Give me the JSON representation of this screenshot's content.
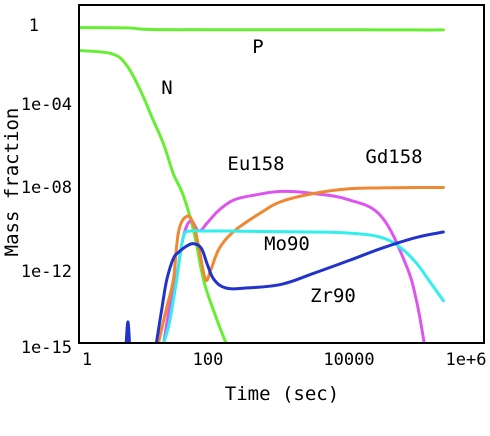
{
  "chart_data": {
    "type": "line",
    "title": "",
    "xlabel": "Time (sec)",
    "ylabel": "Mass fraction",
    "x_scale": "log",
    "y_scale": "log",
    "xlim": [
      1,
      1000000
    ],
    "ylim": [
      1e-15,
      10
    ],
    "x_tick_labels": [
      "1",
      "100",
      "10000",
      "1e+6"
    ],
    "y_tick_labels": [
      "1",
      "1e-04",
      "1e-08",
      "1e-12",
      "1e-15"
    ],
    "grid": false,
    "series": [
      {
        "name": "P",
        "color": "#66ee33",
        "x": [
          1,
          5,
          10,
          30,
          100,
          1000,
          10000,
          100000,
          250000
        ],
        "y": [
          0.85,
          0.82,
          0.7,
          0.68,
          0.68,
          0.67,
          0.67,
          0.66,
          0.66
        ]
      },
      {
        "name": "N",
        "color": "#66ee33",
        "x": [
          1,
          3,
          5,
          8,
          12,
          18,
          25,
          35,
          50,
          70,
          100,
          150
        ],
        "y": [
          0.07,
          0.05,
          0.015,
          0.001,
          5e-05,
          2.5e-06,
          1e-07,
          1e-08,
          2e-10,
          1e-12,
          3e-14,
          1e-15
        ]
      },
      {
        "name": "Eu158",
        "color": "#dd55ee",
        "x": [
          18,
          22,
          28,
          35,
          45,
          60,
          80,
          120,
          200,
          400,
          1000,
          3000,
          10000,
          30000,
          70000,
          100000,
          130000
        ],
        "y": [
          1e-15,
          5e-14,
          1.5e-12,
          1e-10,
          6e-10,
          2e-10,
          5e-10,
          2e-09,
          6e-09,
          1e-08,
          1.5e-08,
          1.2e-08,
          6e-09,
          1e-09,
          5e-12,
          1e-13,
          1e-15
        ]
      },
      {
        "name": "Gd158",
        "color": "#ee8833",
        "x": [
          15,
          20,
          25,
          30,
          40,
          50,
          60,
          75,
          90,
          120,
          200,
          500,
          1000,
          3000,
          10000,
          30000,
          100000,
          250000
        ],
        "y": [
          1e-15,
          5e-14,
          1e-12,
          2e-10,
          1e-09,
          4e-10,
          3e-11,
          1e-12,
          3e-12,
          3e-11,
          2e-10,
          1.5e-09,
          5e-09,
          1.2e-08,
          2e-08,
          2.2e-08,
          2.3e-08,
          2.3e-08
        ]
      },
      {
        "name": "Mo90",
        "color": "#33eeee",
        "x": [
          18,
          22,
          28,
          35,
          45,
          60,
          80,
          150,
          500,
          3000,
          10000,
          30000,
          60000,
          100000,
          150000,
          250000
        ],
        "y": [
          1e-15,
          1e-14,
          1e-12,
          1e-10,
          2e-10,
          2e-10,
          2e-10,
          2e-10,
          1.9e-10,
          1.8e-10,
          1.6e-10,
          1e-10,
          3e-11,
          6e-12,
          1e-12,
          1e-13
        ]
      },
      {
        "name": "Zr90",
        "color": "#2233cc",
        "x": [
          14,
          17,
          20,
          25,
          30,
          40,
          50,
          65,
          80,
          100,
          150,
          300,
          1000,
          3000,
          10000,
          30000,
          100000,
          250000
        ],
        "y": [
          1e-15,
          5e-14,
          1e-12,
          1e-11,
          2e-11,
          4e-11,
          5e-11,
          3e-11,
          5e-12,
          1e-12,
          4e-13,
          4e-13,
          6e-13,
          2e-12,
          8e-12,
          3e-11,
          1e-10,
          1.8e-10
        ]
      },
      {
        "name": "",
        "color": "#2233cc",
        "x": [
          5.0,
          5.3,
          5.6
        ],
        "y": [
          1e-15,
          1e-14,
          1e-15
        ]
      }
    ],
    "annotations": [
      {
        "text": "P",
        "x": 500,
        "y": 0.01
      },
      {
        "text": "N",
        "x": 20,
        "y": 0.0001
      },
      {
        "text": "Eu158",
        "x": 300,
        "y": 2e-07
      },
      {
        "text": "Gd158",
        "x": 30000,
        "y": 2e-07
      },
      {
        "text": "Mo90",
        "x": 1000,
        "y": 5e-11
      },
      {
        "text": "Zr90",
        "x": 4000,
        "y": 3e-13
      }
    ]
  }
}
